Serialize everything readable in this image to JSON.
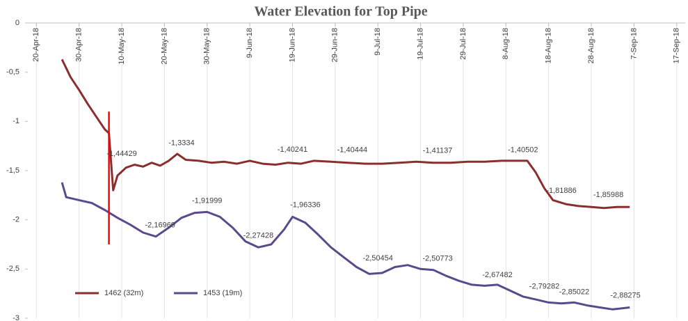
{
  "chart_data": {
    "type": "line",
    "title": "Water Elevation for Top Pipe",
    "xlim": [
      "2018-04-18",
      "2018-09-19"
    ],
    "xticks": [
      {
        "value": "2018-04-20",
        "label": "20-Apr-18"
      },
      {
        "value": "2018-04-30",
        "label": "30-Apr-18"
      },
      {
        "value": "2018-05-10",
        "label": "10-May-18"
      },
      {
        "value": "2018-05-20",
        "label": "20-May-18"
      },
      {
        "value": "2018-05-30",
        "label": "30-May-18"
      },
      {
        "value": "2018-06-09",
        "label": "9-Jun-18"
      },
      {
        "value": "2018-06-19",
        "label": "19-Jun-18"
      },
      {
        "value": "2018-06-29",
        "label": "29-Jun-18"
      },
      {
        "value": "2018-07-09",
        "label": "9-Jul-18"
      },
      {
        "value": "2018-07-19",
        "label": "19-Jul-18"
      },
      {
        "value": "2018-07-29",
        "label": "29-Jul-18"
      },
      {
        "value": "2018-08-08",
        "label": "8-Aug-18"
      },
      {
        "value": "2018-08-18",
        "label": "18-Aug-18"
      },
      {
        "value": "2018-08-28",
        "label": "28-Aug-18"
      },
      {
        "value": "2018-09-07",
        "label": "7-Sep-18"
      },
      {
        "value": "2018-09-17",
        "label": "17-Sep-18"
      }
    ],
    "ylim": [
      -3,
      0
    ],
    "yticks": [
      0,
      {
        "value": -0.5,
        "label": "-0,5"
      },
      -1,
      {
        "value": -1.5,
        "label": "-1,5"
      },
      -2,
      {
        "value": -2.5,
        "label": "-2,5"
      },
      -3
    ],
    "grid": "x",
    "legend": "bottom-left",
    "series": [
      {
        "name": "1462 (32m)",
        "color": "#8b2e2e",
        "x": [
          "2018-04-26",
          "2018-04-28",
          "2018-04-30",
          "2018-05-02",
          "2018-05-04",
          "2018-05-06",
          "2018-05-07",
          "2018-05-08",
          "2018-05-09",
          "2018-05-11",
          "2018-05-13",
          "2018-05-15",
          "2018-05-17",
          "2018-05-19",
          "2018-05-21",
          "2018-05-23",
          "2018-05-25",
          "2018-05-28",
          "2018-05-31",
          "2018-06-03",
          "2018-06-06",
          "2018-06-09",
          "2018-06-12",
          "2018-06-15",
          "2018-06-18",
          "2018-06-21",
          "2018-06-24",
          "2018-06-28",
          "2018-07-02",
          "2018-07-06",
          "2018-07-10",
          "2018-07-14",
          "2018-07-18",
          "2018-07-22",
          "2018-07-26",
          "2018-07-30",
          "2018-08-03",
          "2018-08-07",
          "2018-08-11",
          "2018-08-13",
          "2018-08-15",
          "2018-08-17",
          "2018-08-19",
          "2018-08-22",
          "2018-08-25",
          "2018-08-28",
          "2018-08-31",
          "2018-09-03",
          "2018-09-06"
        ],
        "values": [
          -0.37,
          -0.55,
          -0.68,
          -0.82,
          -0.95,
          -1.08,
          -1.12,
          -1.7,
          -1.55,
          -1.47,
          -1.44,
          -1.46,
          -1.42,
          -1.45,
          -1.4,
          -1.33,
          -1.39,
          -1.4,
          -1.42,
          -1.41,
          -1.43,
          -1.4,
          -1.43,
          -1.44,
          -1.42,
          -1.43,
          -1.4,
          -1.41,
          -1.42,
          -1.43,
          -1.43,
          -1.42,
          -1.41,
          -1.42,
          -1.42,
          -1.41,
          -1.41,
          -1.4,
          -1.4,
          -1.4,
          -1.52,
          -1.68,
          -1.8,
          -1.84,
          -1.86,
          -1.87,
          -1.88,
          -1.87,
          -1.87
        ]
      },
      {
        "name": "1453 (19m)",
        "color": "#5b4a8b",
        "x": [
          "2018-04-26",
          "2018-04-27",
          "2018-04-30",
          "2018-05-03",
          "2018-05-06",
          "2018-05-09",
          "2018-05-12",
          "2018-05-15",
          "2018-05-18",
          "2018-05-21",
          "2018-05-24",
          "2018-05-27",
          "2018-05-30",
          "2018-06-02",
          "2018-06-05",
          "2018-06-08",
          "2018-06-11",
          "2018-06-14",
          "2018-06-17",
          "2018-06-19",
          "2018-06-22",
          "2018-06-25",
          "2018-06-28",
          "2018-07-01",
          "2018-07-04",
          "2018-07-07",
          "2018-07-10",
          "2018-07-13",
          "2018-07-16",
          "2018-07-19",
          "2018-07-22",
          "2018-07-25",
          "2018-07-28",
          "2018-07-31",
          "2018-08-03",
          "2018-08-06",
          "2018-08-09",
          "2018-08-12",
          "2018-08-15",
          "2018-08-18",
          "2018-08-21",
          "2018-08-24",
          "2018-08-27",
          "2018-08-30",
          "2018-09-02",
          "2018-09-06"
        ],
        "values": [
          -1.62,
          -1.77,
          -1.8,
          -1.83,
          -1.9,
          -1.98,
          -2.05,
          -2.13,
          -2.17,
          -2.08,
          -1.98,
          -1.93,
          -1.92,
          -1.97,
          -2.08,
          -2.22,
          -2.28,
          -2.25,
          -2.1,
          -1.97,
          -2.03,
          -2.15,
          -2.28,
          -2.38,
          -2.48,
          -2.55,
          -2.54,
          -2.48,
          -2.46,
          -2.5,
          -2.51,
          -2.57,
          -2.62,
          -2.66,
          -2.67,
          -2.66,
          -2.72,
          -2.78,
          -2.81,
          -2.84,
          -2.85,
          -2.84,
          -2.87,
          -2.89,
          -2.91,
          -2.89
        ]
      }
    ],
    "markers": [
      {
        "x": "2018-05-07",
        "values": [
          -0.9,
          -2.25
        ],
        "color": "#ff0000"
      }
    ],
    "annotations": [
      {
        "text": "-1,44429",
        "x": "2018-05-10",
        "y": -1.44429
      },
      {
        "text": "-1,3334",
        "x": "2018-05-24",
        "y": -1.3334
      },
      {
        "text": "-1,40241",
        "x": "2018-06-19",
        "y": -1.40241
      },
      {
        "text": "-1,40444",
        "x": "2018-07-03",
        "y": -1.40444
      },
      {
        "text": "-1,41137",
        "x": "2018-07-23",
        "y": -1.41137
      },
      {
        "text": "-1,40502",
        "x": "2018-08-12",
        "y": -1.40502
      },
      {
        "text": "-1,81886",
        "x": "2018-08-21",
        "y": -1.81886
      },
      {
        "text": "-1,85988",
        "x": "2018-09-01",
        "y": -1.85988
      },
      {
        "text": "-2,16969",
        "x": "2018-05-19",
        "y": -2.16969
      },
      {
        "text": "-1,91999",
        "x": "2018-05-30",
        "y": -1.91999
      },
      {
        "text": "-2,27428",
        "x": "2018-06-11",
        "y": -2.27428
      },
      {
        "text": "-1,96336",
        "x": "2018-06-22",
        "y": -1.96336
      },
      {
        "text": "-2,50454",
        "x": "2018-07-09",
        "y": -2.50454
      },
      {
        "text": "-2,50773",
        "x": "2018-07-23",
        "y": -2.50773
      },
      {
        "text": "-2,67482",
        "x": "2018-08-06",
        "y": -2.67482
      },
      {
        "text": "-2,79282",
        "x": "2018-08-17",
        "y": -2.79282
      },
      {
        "text": "-2,85022",
        "x": "2018-08-24",
        "y": -2.85022
      },
      {
        "text": "-2,88275",
        "x": "2018-09-05",
        "y": -2.88275
      }
    ]
  }
}
